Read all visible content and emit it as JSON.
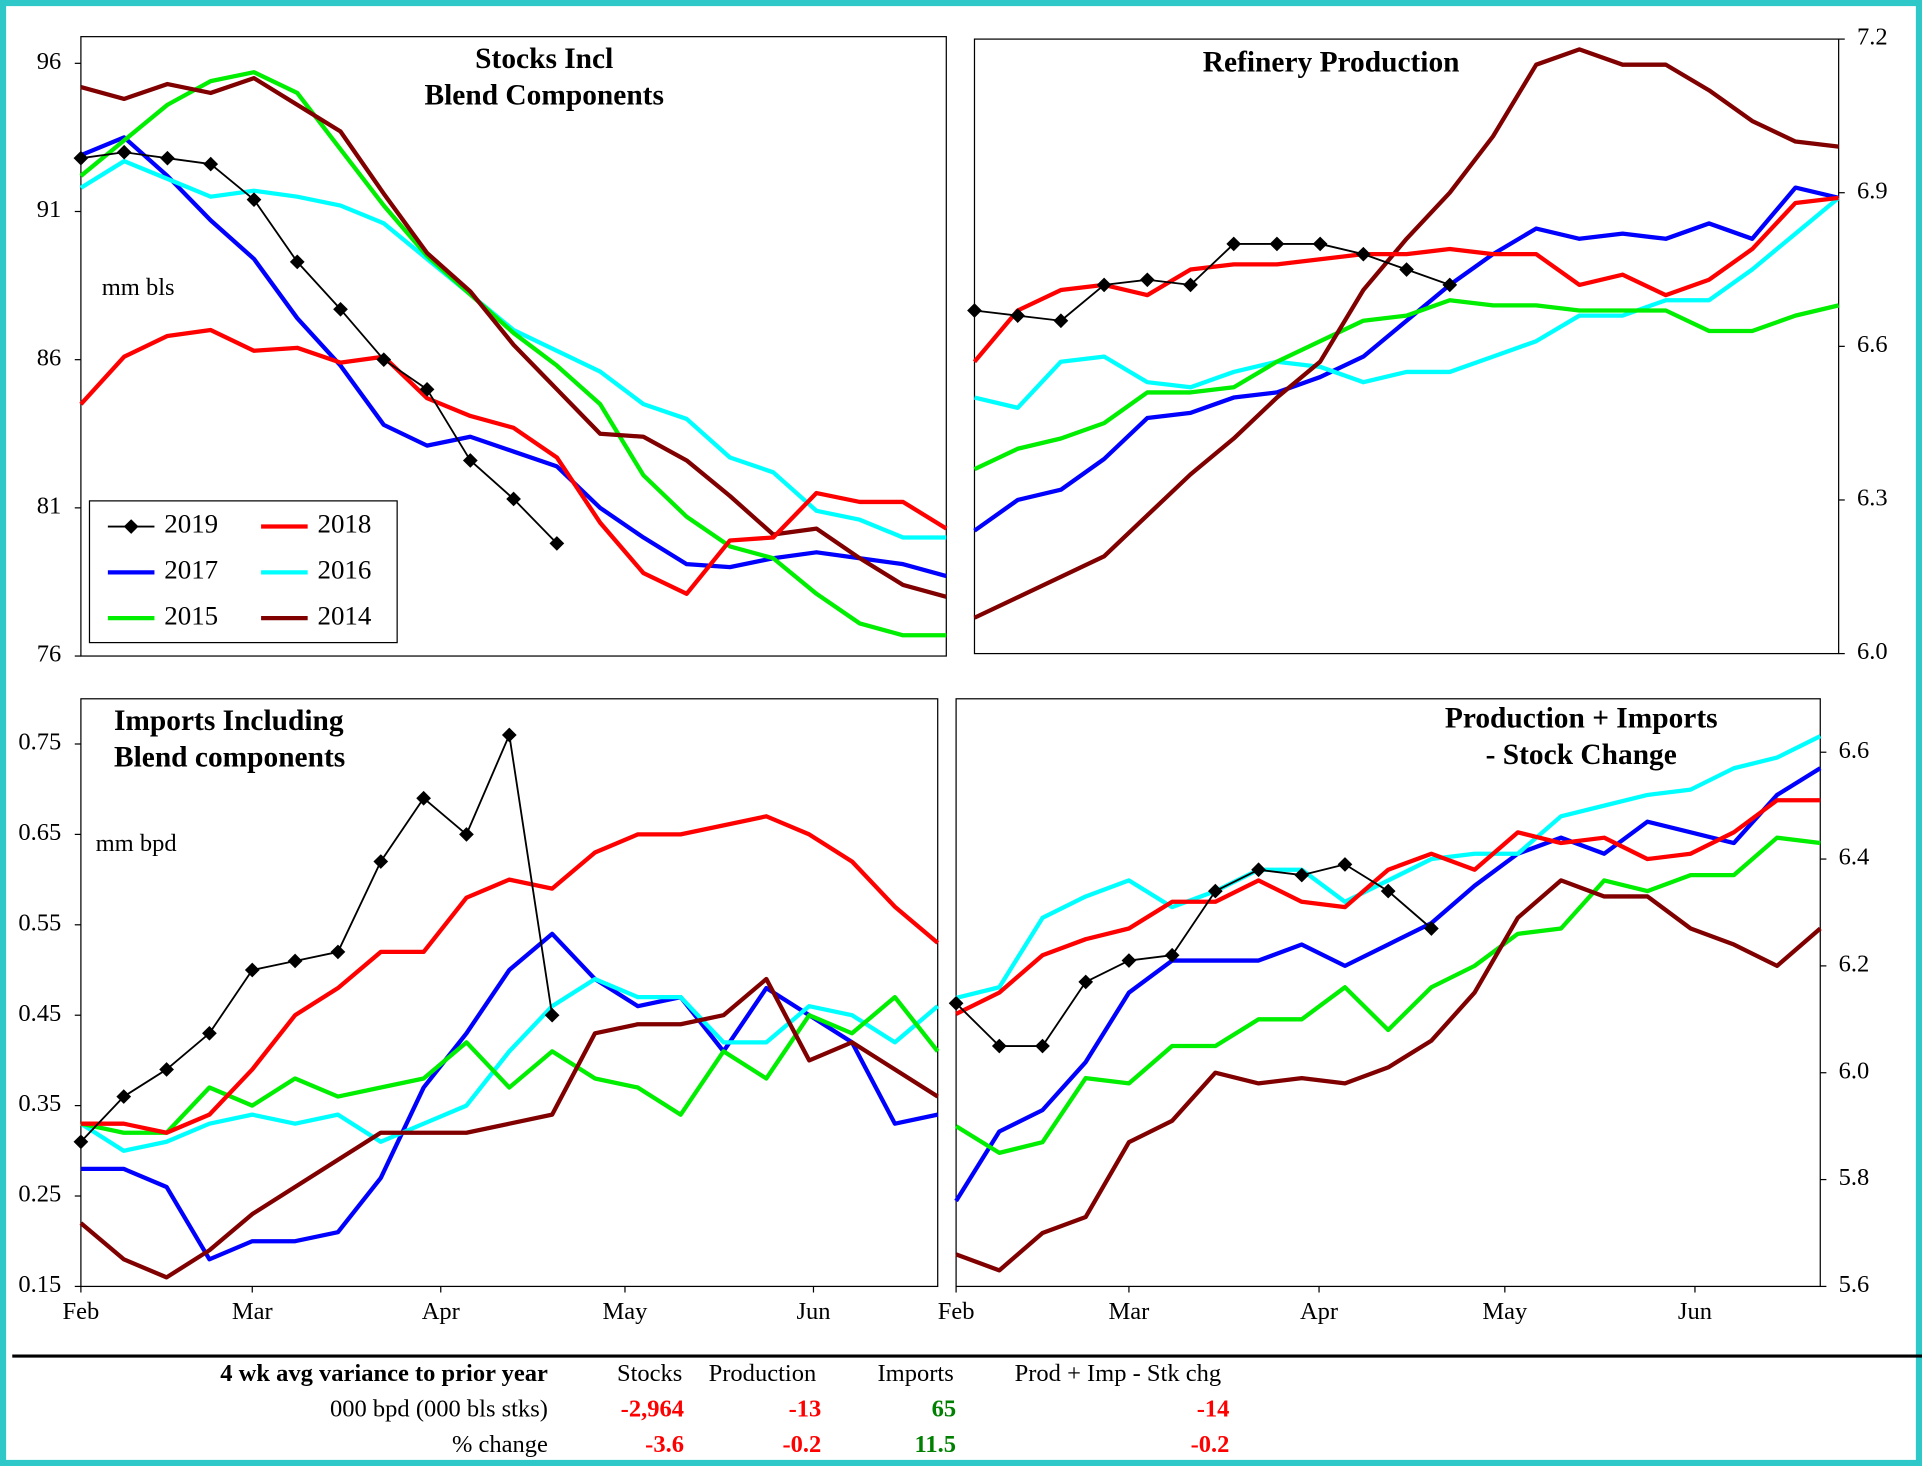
{
  "chart_data": [
    {
      "type": "line",
      "title": [
        "Stocks Incl",
        "Blend Components"
      ],
      "ylabel": "mm  bls",
      "yaxis": "left",
      "x": [
        0,
        1,
        2,
        3,
        4,
        5,
        6,
        7,
        8,
        9,
        10,
        11,
        12,
        13,
        14,
        15,
        16,
        17,
        18,
        19,
        20
      ],
      "xlim": [
        0,
        20
      ],
      "ylim": [
        76,
        96.9
      ],
      "yticks": [
        76,
        81,
        86,
        91,
        96
      ],
      "legend": "lower left",
      "series": [
        {
          "name": "2019",
          "color": "#000000",
          "marker": "diamond",
          "values": [
            92.8,
            93.0,
            92.8,
            92.6,
            91.4,
            89.3,
            87.7,
            86.0,
            85.0,
            82.6,
            81.3,
            79.8,
            null,
            null,
            null,
            null,
            null,
            null,
            null,
            null,
            null
          ]
        },
        {
          "name": "2018",
          "color": "#ff0000",
          "values": [
            84.5,
            86.1,
            86.8,
            87.0,
            86.3,
            86.4,
            85.9,
            86.1,
            84.7,
            84.1,
            83.7,
            82.7,
            80.5,
            78.8,
            78.1,
            79.9,
            80.0,
            81.5,
            81.2,
            81.2,
            80.3
          ]
        },
        {
          "name": "2017",
          "color": "#0000ff",
          "values": [
            92.9,
            93.5,
            92.2,
            90.7,
            89.4,
            87.4,
            85.8,
            83.8,
            83.1,
            83.4,
            82.9,
            82.4,
            81.0,
            80.0,
            79.1,
            79.0,
            79.3,
            79.5,
            79.3,
            79.1,
            78.7
          ]
        },
        {
          "name": "2016",
          "color": "#00ffff",
          "values": [
            91.8,
            92.7,
            92.1,
            91.5,
            91.7,
            91.5,
            91.2,
            90.6,
            89.4,
            88.2,
            87.0,
            86.3,
            85.6,
            84.5,
            84.0,
            82.7,
            82.2,
            80.9,
            80.6,
            80.0,
            80.0
          ]
        },
        {
          "name": "2015",
          "color": "#00ee00",
          "values": [
            92.2,
            93.4,
            94.6,
            95.4,
            95.7,
            95.0,
            93.1,
            91.2,
            89.5,
            88.2,
            86.9,
            85.8,
            84.5,
            82.1,
            80.7,
            79.7,
            79.3,
            78.1,
            77.1,
            76.7,
            76.7
          ]
        },
        {
          "name": "2014",
          "color": "#800000",
          "values": [
            95.2,
            94.8,
            95.3,
            95.0,
            95.5,
            94.6,
            93.7,
            91.6,
            89.6,
            88.3,
            86.5,
            85.0,
            83.5,
            83.4,
            82.6,
            81.4,
            80.1,
            80.3,
            79.3,
            78.4,
            78.0
          ]
        }
      ]
    },
    {
      "type": "line",
      "title": [
        "Refinery Production"
      ],
      "yaxis": "right",
      "x": [
        0,
        1,
        2,
        3,
        4,
        5,
        6,
        7,
        8,
        9,
        10,
        11,
        12,
        13,
        14,
        15,
        16,
        17,
        18,
        19,
        20
      ],
      "xlim": [
        0,
        20
      ],
      "ylim": [
        6.0,
        7.2
      ],
      "yticks": [
        {
          "value": 6,
          "label": "6.0"
        },
        6.3,
        6.6,
        6.9,
        7.2
      ],
      "series": [
        {
          "color": "#000000",
          "marker": "diamond",
          "values": [
            6.67,
            6.66,
            6.65,
            6.72,
            6.73,
            6.72,
            6.8,
            6.8,
            6.8,
            6.78,
            6.75,
            6.72,
            null,
            null,
            null,
            null,
            null,
            null,
            null,
            null,
            null
          ]
        },
        {
          "color": "#ff0000",
          "values": [
            6.57,
            6.67,
            6.71,
            6.72,
            6.7,
            6.75,
            6.76,
            6.76,
            6.77,
            6.78,
            6.78,
            6.79,
            6.78,
            6.78,
            6.72,
            6.74,
            6.7,
            6.73,
            6.79,
            6.88,
            6.89
          ]
        },
        {
          "color": "#0000ff",
          "values": [
            6.24,
            6.3,
            6.32,
            6.38,
            6.46,
            6.47,
            6.5,
            6.51,
            6.54,
            6.58,
            6.65,
            6.72,
            6.78,
            6.83,
            6.81,
            6.82,
            6.81,
            6.84,
            6.81,
            6.91,
            6.89
          ]
        },
        {
          "color": "#00ffff",
          "values": [
            6.5,
            6.48,
            6.57,
            6.58,
            6.53,
            6.52,
            6.55,
            6.57,
            6.56,
            6.53,
            6.55,
            6.55,
            6.58,
            6.61,
            6.66,
            6.66,
            6.69,
            6.69,
            6.75,
            6.82,
            6.89
          ]
        },
        {
          "color": "#00ee00",
          "values": [
            6.36,
            6.4,
            6.42,
            6.45,
            6.51,
            6.51,
            6.52,
            6.57,
            6.61,
            6.65,
            6.66,
            6.69,
            6.68,
            6.68,
            6.67,
            6.67,
            6.67,
            6.63,
            6.63,
            6.66,
            6.68
          ]
        },
        {
          "color": "#800000",
          "values": [
            6.07,
            6.11,
            6.15,
            6.19,
            6.27,
            6.35,
            6.42,
            6.5,
            6.57,
            6.71,
            6.81,
            6.9,
            7.01,
            7.15,
            7.18,
            7.15,
            7.15,
            7.1,
            7.04,
            7.0,
            6.99
          ]
        }
      ]
    },
    {
      "type": "line",
      "title": [
        "Imports Including",
        "Blend components"
      ],
      "ylabel": "mm bpd",
      "yaxis": "left",
      "x": [
        0,
        1,
        2,
        3,
        4,
        5,
        6,
        7,
        8,
        9,
        10,
        11,
        12,
        13,
        14,
        15,
        16,
        17,
        18,
        19,
        20
      ],
      "xlim": [
        0,
        20
      ],
      "xticks": [
        {
          "value": 0,
          "label": "Feb"
        },
        {
          "value": 4,
          "label": "Mar"
        },
        {
          "value": 8.4,
          "label": "Apr"
        },
        {
          "value": 12.7,
          "label": "May"
        },
        {
          "value": 17.1,
          "label": "Jun"
        }
      ],
      "ylim": [
        0.15,
        0.8
      ],
      "yticks": [
        0.15,
        0.25,
        0.35,
        0.45,
        0.55,
        0.65,
        0.75
      ],
      "series": [
        {
          "color": "#000000",
          "marker": "diamond",
          "values": [
            0.31,
            0.36,
            0.39,
            0.43,
            0.5,
            0.51,
            0.52,
            0.62,
            0.69,
            0.65,
            0.76,
            0.45,
            null,
            null,
            null,
            null,
            null,
            null,
            null,
            null,
            null
          ]
        },
        {
          "color": "#ff0000",
          "values": [
            0.33,
            0.33,
            0.32,
            0.34,
            0.39,
            0.45,
            0.48,
            0.52,
            0.52,
            0.58,
            0.6,
            0.59,
            0.63,
            0.65,
            0.65,
            0.66,
            0.67,
            0.65,
            0.62,
            0.57,
            0.53
          ]
        },
        {
          "color": "#0000ff",
          "values": [
            0.28,
            0.28,
            0.26,
            0.18,
            0.2,
            0.2,
            0.21,
            0.27,
            0.37,
            0.43,
            0.5,
            0.54,
            0.49,
            0.46,
            0.47,
            0.41,
            0.48,
            0.45,
            0.42,
            0.33,
            0.34
          ]
        },
        {
          "color": "#00ffff",
          "values": [
            0.33,
            0.3,
            0.31,
            0.33,
            0.34,
            0.33,
            0.34,
            0.31,
            0.33,
            0.35,
            0.41,
            0.46,
            0.49,
            0.47,
            0.47,
            0.42,
            0.42,
            0.46,
            0.45,
            0.42,
            0.46
          ]
        },
        {
          "color": "#00ee00",
          "values": [
            0.33,
            0.32,
            0.32,
            0.37,
            0.35,
            0.38,
            0.36,
            0.37,
            0.38,
            0.42,
            0.37,
            0.41,
            0.38,
            0.37,
            0.34,
            0.41,
            0.38,
            0.45,
            0.43,
            0.47,
            0.41
          ]
        },
        {
          "color": "#800000",
          "values": [
            0.22,
            0.18,
            0.16,
            0.19,
            0.23,
            0.26,
            0.29,
            0.32,
            0.32,
            0.32,
            0.33,
            0.34,
            0.43,
            0.44,
            0.44,
            0.45,
            0.49,
            0.4,
            0.42,
            0.39,
            0.36
          ]
        }
      ]
    },
    {
      "type": "line",
      "title": [
        "Production + Imports",
        "- Stock Change"
      ],
      "yaxis": "right",
      "x": [
        0,
        1,
        2,
        3,
        4,
        5,
        6,
        7,
        8,
        9,
        10,
        11,
        12,
        13,
        14,
        15,
        16,
        17,
        18,
        19,
        20
      ],
      "xlim": [
        0,
        20
      ],
      "xticks": [
        {
          "value": 0,
          "label": "Feb"
        },
        {
          "value": 4,
          "label": "Mar"
        },
        {
          "value": 8.4,
          "label": "Apr"
        },
        {
          "value": 12.7,
          "label": "May"
        },
        {
          "value": 17.1,
          "label": "Jun"
        }
      ],
      "ylim": [
        5.6,
        6.7
      ],
      "yticks": [
        5.6,
        5.8,
        {
          "value": 6,
          "label": "6.0"
        },
        6.2,
        6.4,
        6.6
      ],
      "series": [
        {
          "color": "#000000",
          "marker": "diamond",
          "values": [
            6.13,
            6.05,
            6.05,
            6.17,
            6.21,
            6.22,
            6.34,
            6.38,
            6.37,
            6.39,
            6.34,
            6.27,
            null,
            null,
            null,
            null,
            null,
            null,
            null,
            null,
            null
          ]
        },
        {
          "color": "#ff0000",
          "values": [
            6.11,
            6.15,
            6.22,
            6.25,
            6.27,
            6.32,
            6.32,
            6.36,
            6.32,
            6.31,
            6.38,
            6.41,
            6.38,
            6.45,
            6.43,
            6.44,
            6.4,
            6.41,
            6.45,
            6.51,
            6.51
          ]
        },
        {
          "color": "#0000ff",
          "values": [
            5.76,
            5.89,
            5.93,
            6.02,
            6.15,
            6.21,
            6.21,
            6.21,
            6.24,
            6.2,
            6.24,
            6.28,
            6.35,
            6.41,
            6.44,
            6.41,
            6.47,
            6.45,
            6.43,
            6.52,
            6.57
          ]
        },
        {
          "color": "#00ffff",
          "values": [
            6.14,
            6.16,
            6.29,
            6.33,
            6.36,
            6.31,
            6.34,
            6.38,
            6.38,
            6.32,
            6.36,
            6.4,
            6.41,
            6.41,
            6.48,
            6.5,
            6.52,
            6.53,
            6.57,
            6.59,
            6.63
          ]
        },
        {
          "color": "#00ee00",
          "values": [
            5.9,
            5.85,
            5.87,
            5.99,
            5.98,
            6.05,
            6.05,
            6.1,
            6.1,
            6.16,
            6.08,
            6.16,
            6.2,
            6.26,
            6.27,
            6.36,
            6.34,
            6.37,
            6.37,
            6.44,
            6.43
          ]
        },
        {
          "color": "#800000",
          "values": [
            5.66,
            5.63,
            5.7,
            5.73,
            5.87,
            5.91,
            6.0,
            5.98,
            5.99,
            5.98,
            6.01,
            6.06,
            6.15,
            6.29,
            6.36,
            6.33,
            6.33,
            6.27,
            6.24,
            6.2,
            6.27
          ]
        }
      ]
    }
  ],
  "table": {
    "header": [
      "4 wk avg variance to prior year",
      "Stocks",
      "Production",
      "Imports",
      "Prod + Imp - Stk chg"
    ],
    "rows": [
      [
        "000 bpd (000 bls stks)",
        "-2,964",
        "-13",
        "65",
        "-14"
      ],
      [
        "% change",
        "-3.6",
        "-0.2",
        "11.5",
        "-0.2"
      ]
    ]
  }
}
